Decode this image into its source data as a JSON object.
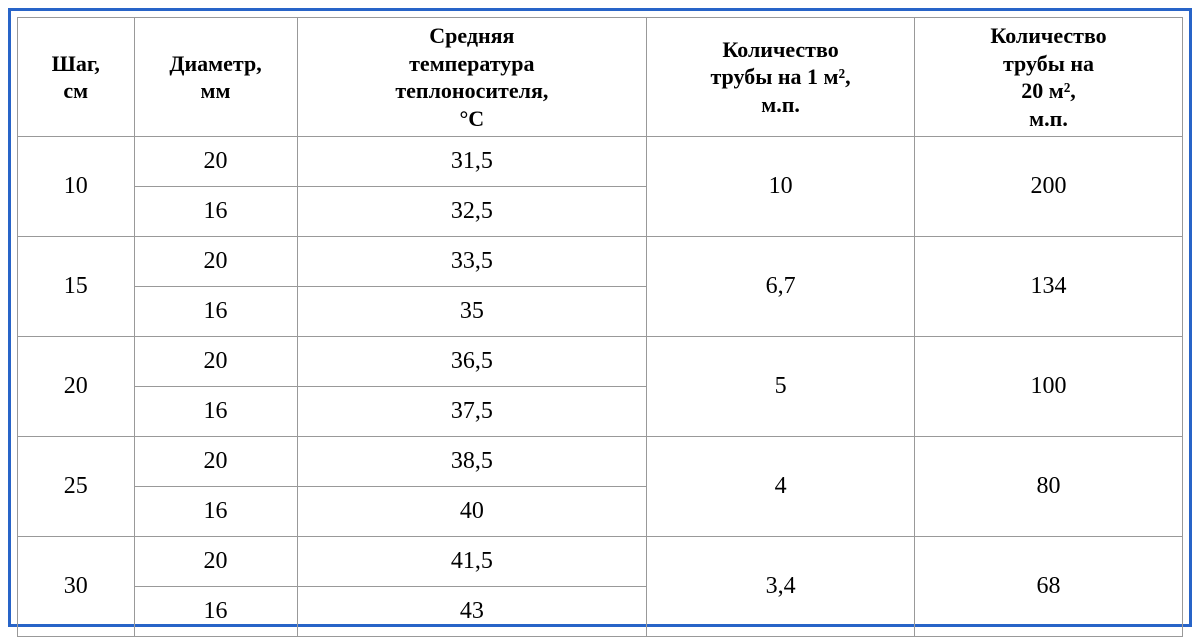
{
  "table": {
    "headers": [
      "Шаг,\nсм",
      "Диаметр,\nмм",
      "Средняя\nтемпература\nтеплоносителя,\n°C",
      "Количество\nтрубы на 1 м²,\nм.п.",
      "Количество\nтрубы на\n20 м²,\nм.п."
    ],
    "groups": [
      {
        "step": "10",
        "rows": [
          {
            "diameter": "20",
            "temp": "31,5"
          },
          {
            "diameter": "16",
            "temp": "32,5"
          }
        ],
        "per1m2": "10",
        "per20m2": "200"
      },
      {
        "step": "15",
        "rows": [
          {
            "diameter": "20",
            "temp": "33,5"
          },
          {
            "diameter": "16",
            "temp": "35"
          }
        ],
        "per1m2": "6,7",
        "per20m2": "134"
      },
      {
        "step": "20",
        "rows": [
          {
            "diameter": "20",
            "temp": "36,5"
          },
          {
            "diameter": "16",
            "temp": "37,5"
          }
        ],
        "per1m2": "5",
        "per20m2": "100"
      },
      {
        "step": "25",
        "rows": [
          {
            "diameter": "20",
            "temp": "38,5"
          },
          {
            "diameter": "16",
            "temp": "40"
          }
        ],
        "per1m2": "4",
        "per20m2": "80"
      },
      {
        "step": "30",
        "rows": [
          {
            "diameter": "20",
            "temp": "41,5"
          },
          {
            "diameter": "16",
            "temp": "43"
          }
        ],
        "per1m2": "3,4",
        "per20m2": "68"
      }
    ]
  },
  "style": {
    "outer_border_color": "#2864c8",
    "cell_border_color": "#999999",
    "text_color": "#000000",
    "background": "#ffffff",
    "header_fontsize": 22,
    "body_fontsize": 24,
    "font_family": "Times New Roman"
  }
}
